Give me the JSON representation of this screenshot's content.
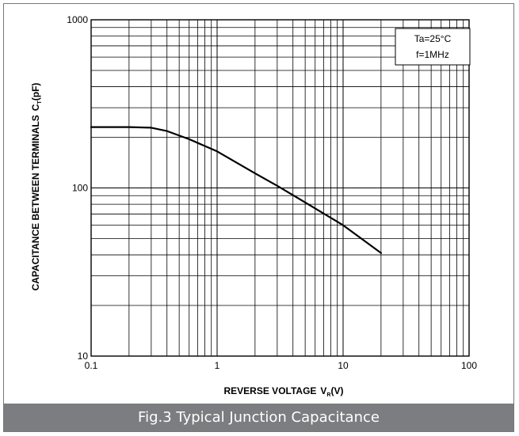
{
  "chart_data": {
    "type": "line",
    "title": "",
    "xlabel": "REVERSE VOLTAGE",
    "xlabel_symbol": "V",
    "xlabel_subscript": "R",
    "xlabel_unit": "(V)",
    "ylabel": "CAPACITANCE BETWEEN TERMINALS",
    "ylabel_symbol": "C",
    "ylabel_subscript": "T",
    "ylabel_unit": "(pF)",
    "x_scale": "log",
    "y_scale": "log",
    "xlim": [
      0.1,
      100
    ],
    "ylim": [
      10,
      1000
    ],
    "x_ticks": [
      0.1,
      1,
      10,
      100
    ],
    "x_tick_labels": [
      "0.1",
      "1",
      "10",
      "100"
    ],
    "y_ticks": [
      10,
      100,
      1000
    ],
    "y_tick_labels": [
      "10",
      "100",
      "1000"
    ],
    "grid": true,
    "legend_position": "top-right",
    "annotations": [
      "Ta=25°C",
      "f=1MHz"
    ],
    "series": [
      {
        "x": [
          0.1,
          0.2,
          0.3,
          0.4,
          0.6,
          1,
          2,
          3,
          5,
          10,
          20
        ],
        "y": [
          230,
          230,
          228,
          218,
          195,
          165,
          122,
          103,
          82,
          60,
          41
        ]
      }
    ]
  },
  "caption": "Fig.3 Typical Junction Capacitance",
  "colors": {
    "caption_background": "#7b7d80",
    "caption_text": "#ffffff",
    "line": "#000000",
    "grid": "#000000"
  }
}
